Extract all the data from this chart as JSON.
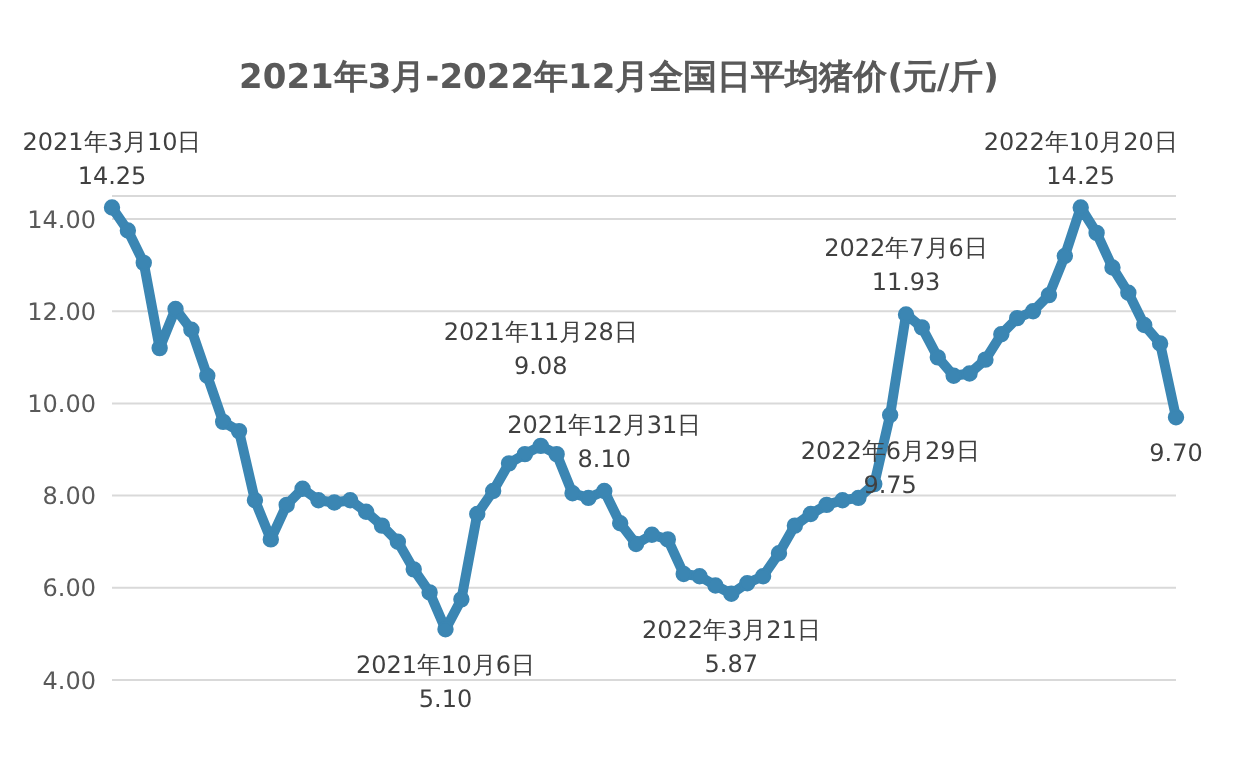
{
  "chart_data": {
    "type": "line",
    "title": "2021年3月-2022年12月全国日平均猪价(元/斤)",
    "categories": [
      null,
      null,
      null,
      null,
      null,
      null,
      null,
      null,
      null,
      null,
      null,
      null,
      null,
      null,
      null,
      null,
      null,
      null,
      null,
      null,
      null,
      null,
      null,
      null,
      null,
      null,
      null,
      null,
      null,
      null,
      null,
      null,
      null,
      null,
      null,
      null,
      null,
      null,
      null,
      null,
      null,
      null,
      null,
      null,
      null,
      null,
      null,
      null,
      null,
      null,
      null,
      null,
      null,
      null,
      null,
      null,
      null,
      null,
      null,
      null,
      null,
      null,
      null,
      null,
      null,
      null,
      null,
      null
    ],
    "series": [
      {
        "color": "#3b86b3",
        "values": [
          14.25,
          13.75,
          13.05,
          11.2,
          12.05,
          11.6,
          10.6,
          9.6,
          9.4,
          7.9,
          7.05,
          7.8,
          8.15,
          7.9,
          7.85,
          7.9,
          7.65,
          7.35,
          7.0,
          6.4,
          5.9,
          5.1,
          5.75,
          7.6,
          8.1,
          8.7,
          8.9,
          9.08,
          8.9,
          8.05,
          7.95,
          8.1,
          7.4,
          6.95,
          7.15,
          7.05,
          6.3,
          6.25,
          6.05,
          5.87,
          6.1,
          6.25,
          6.75,
          7.35,
          7.6,
          7.8,
          7.9,
          7.95,
          8.25,
          9.75,
          11.93,
          11.65,
          11.0,
          10.6,
          10.65,
          10.95,
          11.5,
          11.85,
          12.0,
          12.35,
          13.2,
          14.25,
          13.7,
          12.95,
          12.4,
          11.7,
          11.3,
          9.7
        ]
      }
    ],
    "ylim": [
      4,
      14.5
    ],
    "yticks": [
      {
        "value": 4,
        "label": "4.00"
      },
      {
        "value": 6,
        "label": "6.00"
      },
      {
        "value": 8,
        "label": "8.00"
      },
      {
        "value": 10,
        "label": "10.00"
      },
      {
        "value": 12,
        "label": "12.00"
      },
      {
        "value": 14,
        "label": "14.00"
      }
    ],
    "tick_labels": "y",
    "grid": "y",
    "marker": "circle",
    "line_style": "solid",
    "annotations": [
      {
        "text": "2021年3月10日\n14.25",
        "y": 14.25
      },
      {
        "text": "2021年10月6日\n5.10",
        "y": 5.1
      },
      {
        "text": "2021年11月28日\n9.08",
        "y": 9.08
      },
      {
        "text": "2021年12月31日\n8.10",
        "y": 8.1
      },
      {
        "text": "2022年3月21日\n5.87",
        "y": 5.87
      },
      {
        "text": "2022年6月29日\n9.75",
        "y": 9.75
      },
      {
        "text": "2022年7月6日\n11.93",
        "y": 11.93
      },
      {
        "text": "2022年10月20日\n14.25",
        "y": 14.25
      },
      {
        "text": "9.70",
        "y": 9.7
      }
    ]
  }
}
